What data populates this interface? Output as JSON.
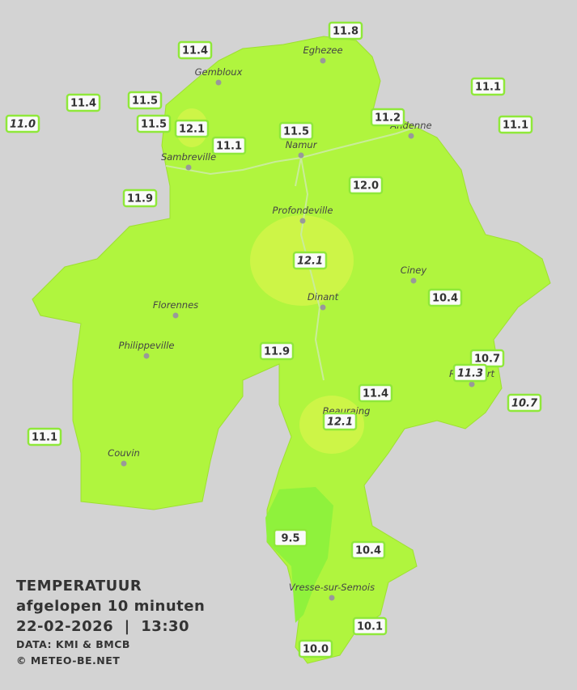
{
  "legend": {
    "title": "TEMPERATUUR",
    "subtitle": "afgelopen 10 minuten",
    "datetime": "22-02-2026  |  13:30",
    "source": "DATA: KMI & BMCB",
    "copyright": "© METEO-BE.NET"
  },
  "towns": [
    "Eghezee",
    "Gembloux",
    "Andenne",
    "Namur",
    "Sambreville",
    "Profondeville",
    "Ciney",
    "Dinant",
    "Florennes",
    "Philippeville",
    "Rochefort",
    "Beauraing",
    "Couvin",
    "Vresse-sur-Semois"
  ],
  "readings": [
    {
      "value": "11.8",
      "italic": false
    },
    {
      "value": "11.4",
      "italic": false
    },
    {
      "value": "11.1",
      "italic": false
    },
    {
      "value": "11.4",
      "italic": false
    },
    {
      "value": "11.5",
      "italic": false
    },
    {
      "value": "11.0",
      "italic": true
    },
    {
      "value": "11.5",
      "italic": false
    },
    {
      "value": "12.1",
      "italic": false
    },
    {
      "value": "11.2",
      "italic": false
    },
    {
      "value": "11.1",
      "italic": false
    },
    {
      "value": "11.5",
      "italic": false
    },
    {
      "value": "11.1",
      "italic": false
    },
    {
      "value": "12.0",
      "italic": false
    },
    {
      "value": "11.9",
      "italic": false
    },
    {
      "value": "12.1",
      "italic": true
    },
    {
      "value": "10.4",
      "italic": false
    },
    {
      "value": "11.9",
      "italic": false
    },
    {
      "value": "10.7",
      "italic": false
    },
    {
      "value": "11.3",
      "italic": true
    },
    {
      "value": "11.4",
      "italic": false
    },
    {
      "value": "10.7",
      "italic": true
    },
    {
      "value": "12.1",
      "italic": true
    },
    {
      "value": "11.1",
      "italic": false
    },
    {
      "value": "9.5",
      "italic": false
    },
    {
      "value": "10.4",
      "italic": false
    },
    {
      "value": "10.1",
      "italic": false
    },
    {
      "value": "10.0",
      "italic": false
    }
  ]
}
